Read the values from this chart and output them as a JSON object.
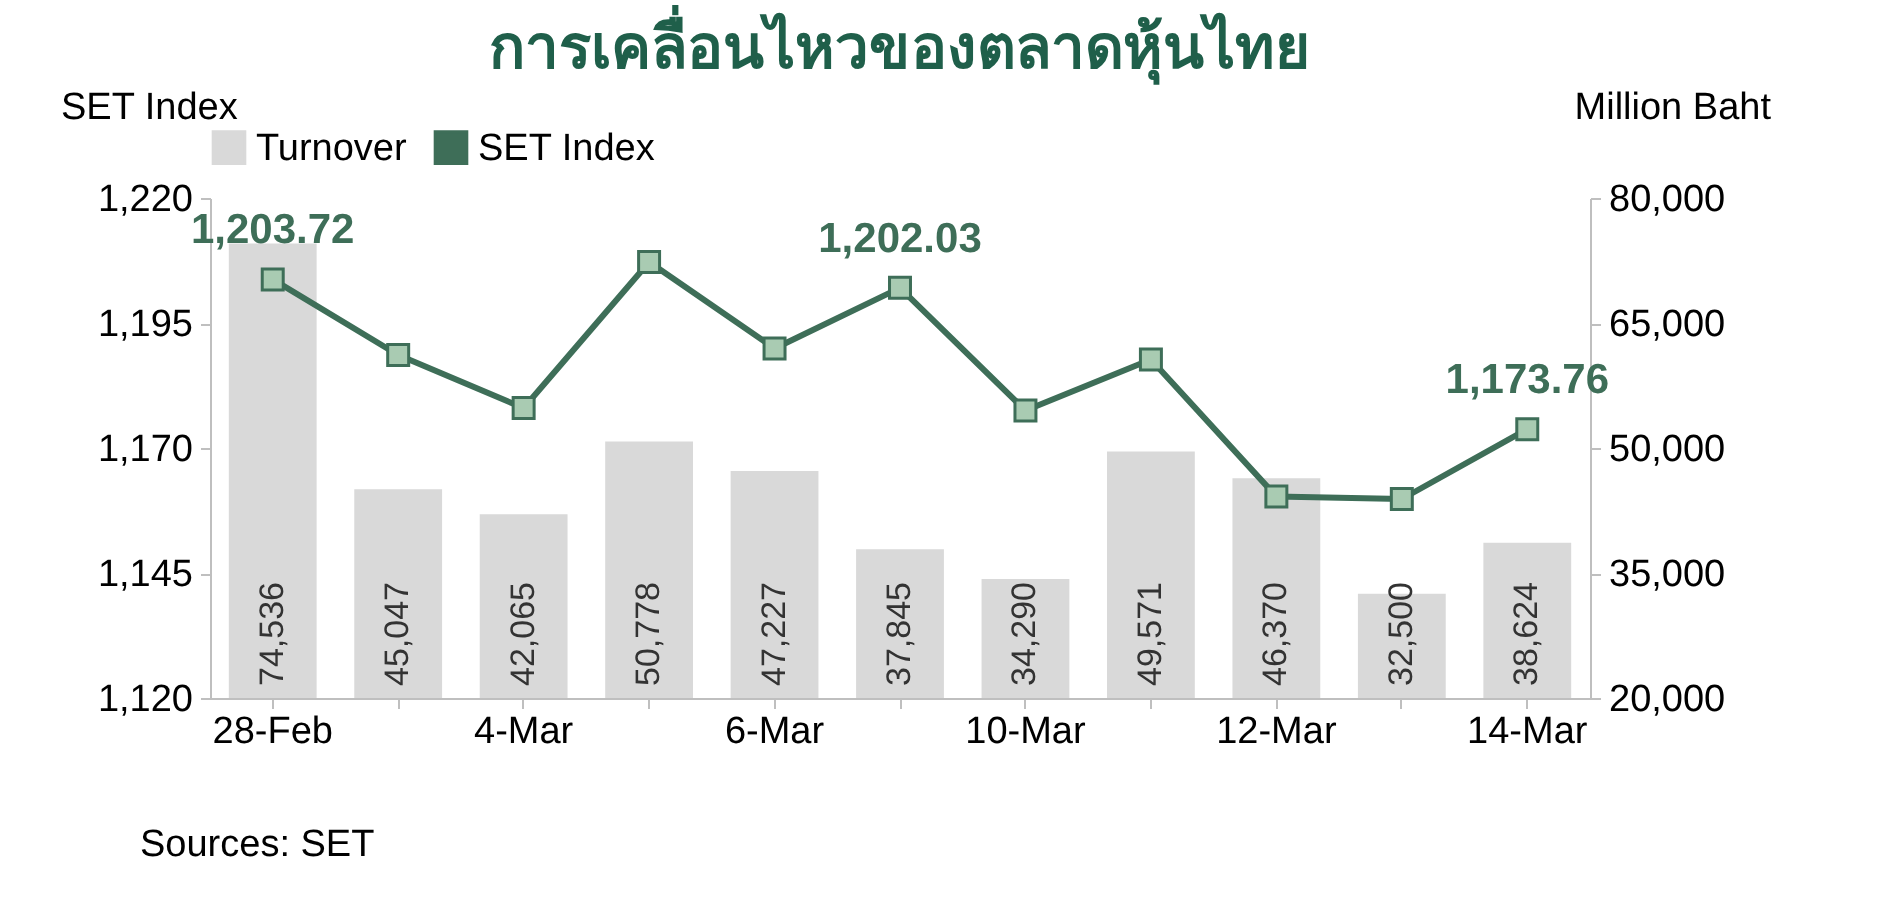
{
  "chart_data": {
    "type": "bar",
    "title": "การเคลื่อนไหวของตลาดหุ้นไทย",
    "ylabel": "SET Index",
    "y2label": "Million Baht",
    "categories": [
      "28-Feb",
      null,
      "4-Mar",
      null,
      "6-Mar",
      null,
      "10-Mar",
      null,
      "12-Mar",
      null,
      "14-Mar"
    ],
    "series": [
      {
        "name": "Turnover",
        "axis": "y2",
        "color": "#d9d9d9",
        "values": [
          74536,
          45047,
          42065,
          50778,
          47227,
          37845,
          34290,
          49571,
          46370,
          32500,
          38624
        ],
        "value_labels": [
          "74,536",
          "45,047",
          "42,065",
          "50,778",
          "47,227",
          "37,845",
          "34,290",
          "49,571",
          "46,370",
          "32,500",
          "38,624"
        ]
      },
      {
        "name": "SET Index",
        "type": "line",
        "color": "#3e6e58",
        "values": [
          1203.72,
          1188.6,
          1178,
          1207.2,
          1189.9,
          1202.03,
          1177.5,
          1187.7,
          1160.3,
          1159.8,
          1173.76
        ],
        "value_labels": [
          "1,203.72",
          null,
          null,
          null,
          null,
          "1,202.03",
          null,
          null,
          null,
          null,
          "1,173.76"
        ]
      }
    ],
    "ylim": [
      1120,
      1220
    ],
    "yticks": [
      {
        "value": 1120,
        "label": "1,120"
      },
      {
        "value": 1145,
        "label": "1,145"
      },
      {
        "value": 1170,
        "label": "1,170"
      },
      {
        "value": 1195,
        "label": "1,195"
      },
      {
        "value": 1220,
        "label": "1,220"
      }
    ],
    "y2lim": [
      20000,
      80000
    ],
    "y2ticks": [
      {
        "value": 20000,
        "label": "20,000"
      },
      {
        "value": 35000,
        "label": "35,000"
      },
      {
        "value": 50000,
        "label": "50,000"
      },
      {
        "value": 65000,
        "label": "65,000"
      },
      {
        "value": 80000,
        "label": "80,000"
      }
    ],
    "marker": "square",
    "line_style": "solid",
    "legend": "top",
    "annotations": [
      "Sources: SET"
    ]
  }
}
